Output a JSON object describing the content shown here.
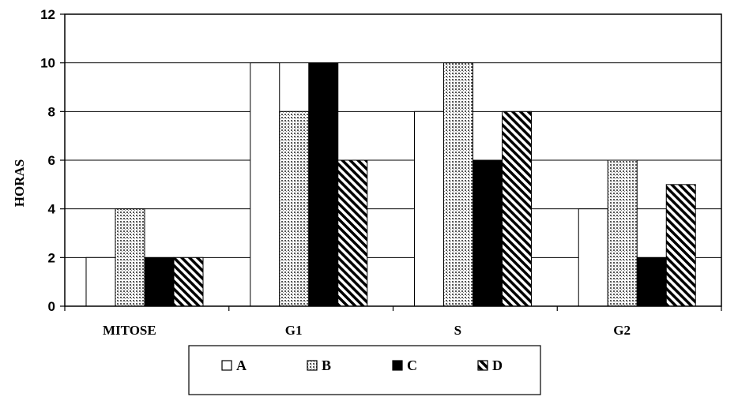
{
  "chart_data": {
    "type": "bar",
    "title": "",
    "xlabel": "",
    "ylabel": "HORAS",
    "ylim": [
      0,
      12
    ],
    "yticks": [
      0,
      2,
      4,
      6,
      8,
      10,
      12
    ],
    "grid": true,
    "legend_position": "bottom",
    "categories": [
      "MITOSE",
      "G1",
      "S",
      "G2"
    ],
    "series": [
      {
        "name": "A",
        "values": [
          2,
          10,
          8,
          4
        ],
        "fill": "white"
      },
      {
        "name": "B",
        "values": [
          4,
          8,
          10,
          6
        ],
        "fill": "dotted"
      },
      {
        "name": "C",
        "values": [
          2,
          10,
          6,
          2
        ],
        "fill": "black"
      },
      {
        "name": "D",
        "values": [
          2,
          6,
          8,
          5
        ],
        "fill": "diagonal-hatch"
      }
    ]
  }
}
